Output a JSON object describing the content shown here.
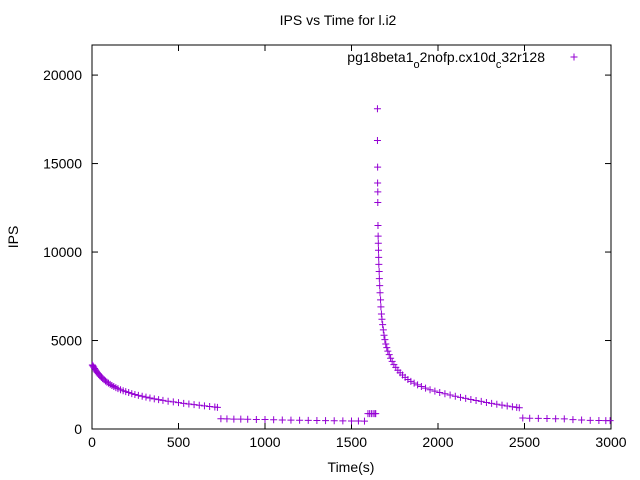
{
  "chart_data": {
    "type": "scatter",
    "title": "IPS vs Time for l.i2",
    "xlabel": "Time(s)",
    "ylabel": "IPS",
    "xlim": [
      0,
      3000
    ],
    "ylim": [
      0,
      21700
    ],
    "x_ticks": [
      "0",
      "500",
      "1000",
      "1500",
      "2000",
      "2500",
      "3000"
    ],
    "y_ticks": [
      "0",
      "5000",
      "10000",
      "15000",
      "20000"
    ],
    "grid": false,
    "legend_position": "top-right",
    "legend": {
      "parts": [
        {
          "text": "pg18beta1",
          "sub": false
        },
        {
          "text": "o",
          "sub": true
        },
        {
          "text": "2nofp.cx10d",
          "sub": false
        },
        {
          "text": "c",
          "sub": true
        },
        {
          "text": "32r128",
          "sub": false
        }
      ]
    },
    "marker": "+",
    "color": "#9400d3",
    "series": [
      {
        "points": [
          [
            2,
            3620
          ],
          [
            6,
            3560
          ],
          [
            10,
            3500
          ],
          [
            15,
            3420
          ],
          [
            20,
            3340
          ],
          [
            25,
            3270
          ],
          [
            30,
            3200
          ],
          [
            36,
            3130
          ],
          [
            42,
            3060
          ],
          [
            48,
            2990
          ],
          [
            55,
            2920
          ],
          [
            62,
            2850
          ],
          [
            70,
            2780
          ],
          [
            78,
            2710
          ],
          [
            86,
            2650
          ],
          [
            95,
            2590
          ],
          [
            105,
            2520
          ],
          [
            115,
            2460
          ],
          [
            126,
            2400
          ],
          [
            138,
            2340
          ],
          [
            150,
            2280
          ],
          [
            165,
            2220
          ],
          [
            180,
            2160
          ],
          [
            195,
            2110
          ],
          [
            212,
            2060
          ],
          [
            230,
            2000
          ],
          [
            248,
            1950
          ],
          [
            268,
            1900
          ],
          [
            290,
            1850
          ],
          [
            312,
            1800
          ],
          [
            335,
            1750
          ],
          [
            360,
            1705
          ],
          [
            385,
            1660
          ],
          [
            410,
            1615
          ],
          [
            440,
            1570
          ],
          [
            470,
            1530
          ],
          [
            500,
            1490
          ],
          [
            530,
            1450
          ],
          [
            560,
            1410
          ],
          [
            590,
            1375
          ],
          [
            620,
            1340
          ],
          [
            650,
            1305
          ],
          [
            680,
            1270
          ],
          [
            710,
            1240
          ],
          [
            725,
            1220
          ],
          [
            745,
            580
          ],
          [
            780,
            570
          ],
          [
            820,
            560
          ],
          [
            860,
            555
          ],
          [
            900,
            550
          ],
          [
            950,
            540
          ],
          [
            1000,
            535
          ],
          [
            1050,
            520
          ],
          [
            1100,
            510
          ],
          [
            1150,
            500
          ],
          [
            1200,
            495
          ],
          [
            1250,
            490
          ],
          [
            1300,
            480
          ],
          [
            1350,
            475
          ],
          [
            1400,
            465
          ],
          [
            1450,
            460
          ],
          [
            1500,
            455
          ],
          [
            1540,
            450
          ],
          [
            1575,
            445
          ],
          [
            1595,
            870
          ],
          [
            1605,
            870
          ],
          [
            1615,
            870
          ],
          [
            1625,
            870
          ],
          [
            1635,
            870
          ],
          [
            1640,
            870
          ],
          [
            1650,
            18100
          ],
          [
            1650,
            16300
          ],
          [
            1651,
            14800
          ],
          [
            1651,
            13900
          ],
          [
            1652,
            13400
          ],
          [
            1652,
            12800
          ],
          [
            1653,
            11500
          ],
          [
            1654,
            10900
          ],
          [
            1655,
            10500
          ],
          [
            1656,
            10100
          ],
          [
            1657,
            9700
          ],
          [
            1658,
            9300
          ],
          [
            1660,
            8900
          ],
          [
            1661,
            8500
          ],
          [
            1663,
            8100
          ],
          [
            1665,
            7700
          ],
          [
            1668,
            7300
          ],
          [
            1670,
            6900
          ],
          [
            1673,
            6500
          ],
          [
            1676,
            6200
          ],
          [
            1680,
            5900
          ],
          [
            1684,
            5600
          ],
          [
            1688,
            5300
          ],
          [
            1693,
            5050
          ],
          [
            1698,
            4800
          ],
          [
            1704,
            4600
          ],
          [
            1710,
            4400
          ],
          [
            1718,
            4200
          ],
          [
            1726,
            4000
          ],
          [
            1735,
            3820
          ],
          [
            1745,
            3640
          ],
          [
            1756,
            3480
          ],
          [
            1768,
            3320
          ],
          [
            1781,
            3180
          ],
          [
            1795,
            3050
          ],
          [
            1810,
            2920
          ],
          [
            1826,
            2800
          ],
          [
            1843,
            2690
          ],
          [
            1862,
            2590
          ],
          [
            1882,
            2490
          ],
          [
            1904,
            2400
          ],
          [
            1928,
            2310
          ],
          [
            1954,
            2220
          ],
          [
            1982,
            2140
          ],
          [
            2010,
            2060
          ],
          [
            2040,
            1990
          ],
          [
            2070,
            1920
          ],
          [
            2100,
            1850
          ],
          [
            2130,
            1790
          ],
          [
            2160,
            1730
          ],
          [
            2190,
            1670
          ],
          [
            2220,
            1610
          ],
          [
            2250,
            1560
          ],
          [
            2280,
            1500
          ],
          [
            2310,
            1450
          ],
          [
            2340,
            1400
          ],
          [
            2370,
            1350
          ],
          [
            2400,
            1300
          ],
          [
            2430,
            1260
          ],
          [
            2455,
            1220
          ],
          [
            2470,
            1200
          ],
          [
            2490,
            620
          ],
          [
            2530,
            610
          ],
          [
            2580,
            600
          ],
          [
            2630,
            590
          ],
          [
            2680,
            580
          ],
          [
            2730,
            570
          ],
          [
            2780,
            530
          ],
          [
            2830,
            510
          ],
          [
            2880,
            490
          ],
          [
            2930,
            480
          ],
          [
            2970,
            470
          ],
          [
            2995,
            470
          ]
        ]
      }
    ]
  }
}
